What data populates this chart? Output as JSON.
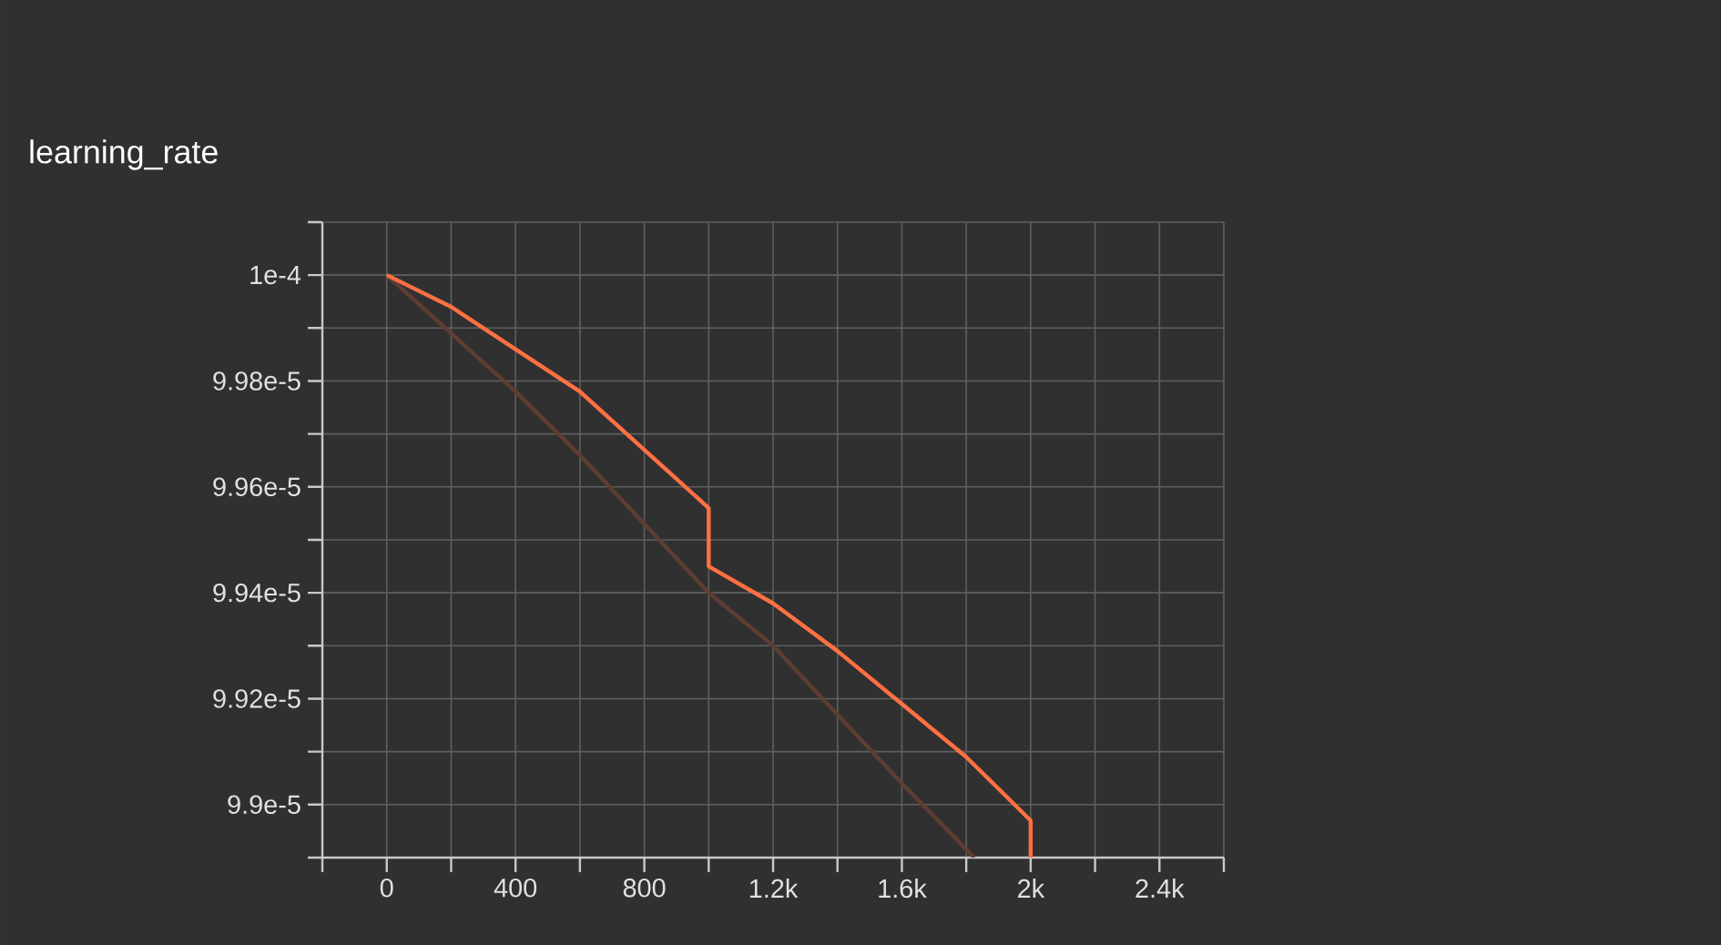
{
  "chart_data": {
    "type": "line",
    "title": "learning_rate",
    "xlim": [
      -200,
      2600
    ],
    "xticks": [
      {
        "value": -200,
        "label": null
      },
      0,
      {
        "value": 200,
        "label": null
      },
      400,
      {
        "value": 600,
        "label": null
      },
      800,
      {
        "value": 1000,
        "label": null
      },
      {
        "value": 1200,
        "label": "1.2k"
      },
      {
        "value": 1400,
        "label": null
      },
      {
        "value": 1600,
        "label": "1.6k"
      },
      {
        "value": 1800,
        "label": null
      },
      {
        "value": 2000,
        "label": "2k"
      },
      {
        "value": 2200,
        "label": null
      },
      {
        "value": 2400,
        "label": "2.4k"
      },
      {
        "value": 2600,
        "label": null
      }
    ],
    "ylim": [
      9.89e-05,
      0.0001001
    ],
    "yticks": [
      {
        "value": 9.89e-05,
        "label": null
      },
      {
        "value": 9.9e-05,
        "label": "9.9e-5"
      },
      {
        "value": 9.91e-05,
        "label": null
      },
      {
        "value": 9.92e-05,
        "label": "9.92e-5"
      },
      {
        "value": 9.93e-05,
        "label": null
      },
      {
        "value": 9.94e-05,
        "label": "9.94e-5"
      },
      {
        "value": 9.95e-05,
        "label": null
      },
      {
        "value": 9.96e-05,
        "label": "9.96e-5"
      },
      {
        "value": 9.97e-05,
        "label": null
      },
      {
        "value": 9.98e-05,
        "label": "9.98e-5"
      },
      {
        "value": 9.99e-05,
        "label": null
      },
      {
        "value": 0.0001,
        "label": "1e-4"
      },
      {
        "value": 0.0001001,
        "label": null
      }
    ],
    "grid": true,
    "line_style": "solid",
    "series": [
      {
        "color": "#5e3d33",
        "x": [
          0,
          200,
          400,
          600,
          800,
          1000,
          1200,
          1400,
          1600,
          1825
        ],
        "values": [
          0.0001,
          9.989e-05,
          9.978e-05,
          9.966e-05,
          9.953e-05,
          9.94e-05,
          9.93e-05,
          9.917e-05,
          9.904e-05,
          9.89e-05
        ]
      },
      {
        "color": "#ff7043",
        "x": [
          0,
          200,
          400,
          600,
          800,
          1000,
          1000,
          1200,
          1400,
          1600,
          1800,
          2000,
          2000
        ],
        "values": [
          0.0001,
          9.994e-05,
          9.986e-05,
          9.978e-05,
          9.967e-05,
          9.956e-05,
          9.945e-05,
          9.938e-05,
          9.929e-05,
          9.919e-05,
          9.909e-05,
          9.897e-05,
          9.89e-05
        ]
      }
    ]
  }
}
